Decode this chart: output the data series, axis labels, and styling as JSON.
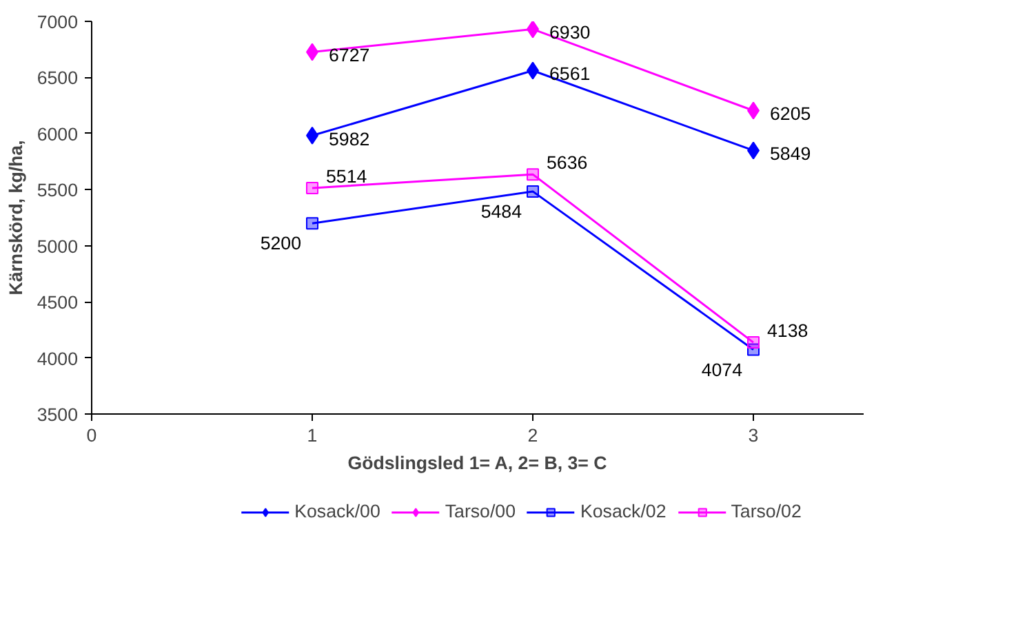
{
  "chart_data": {
    "type": "line",
    "xlabel": "Gödslingsled 1= A, 2= B, 3= C",
    "ylabel": "Kärnskörd, kg/ha,",
    "x": [
      1,
      2,
      3
    ],
    "series": [
      {
        "name": "Kosack/00",
        "color": "#0000ff",
        "marker": "diamond",
        "values": [
          5982,
          6561,
          5849
        ]
      },
      {
        "name": "Tarso/00",
        "color": "#ff00ff",
        "marker": "diamond",
        "values": [
          6727,
          6930,
          6205
        ]
      },
      {
        "name": "Kosack/02",
        "color": "#0000ff",
        "marker": "square",
        "values": [
          5200,
          5484,
          4074
        ]
      },
      {
        "name": "Tarso/02",
        "color": "#ff00ff",
        "marker": "square",
        "values": [
          5514,
          5636,
          4138
        ]
      }
    ],
    "xlim": [
      0,
      3.5
    ],
    "xticks": [
      0,
      1,
      2,
      3
    ],
    "ylim": [
      3500,
      7000
    ],
    "yticks": [
      3500,
      4000,
      4500,
      5000,
      5500,
      6000,
      6500,
      7000
    ],
    "grid": false,
    "legend": "bottom",
    "data_labels": true,
    "line_style": "solid"
  }
}
